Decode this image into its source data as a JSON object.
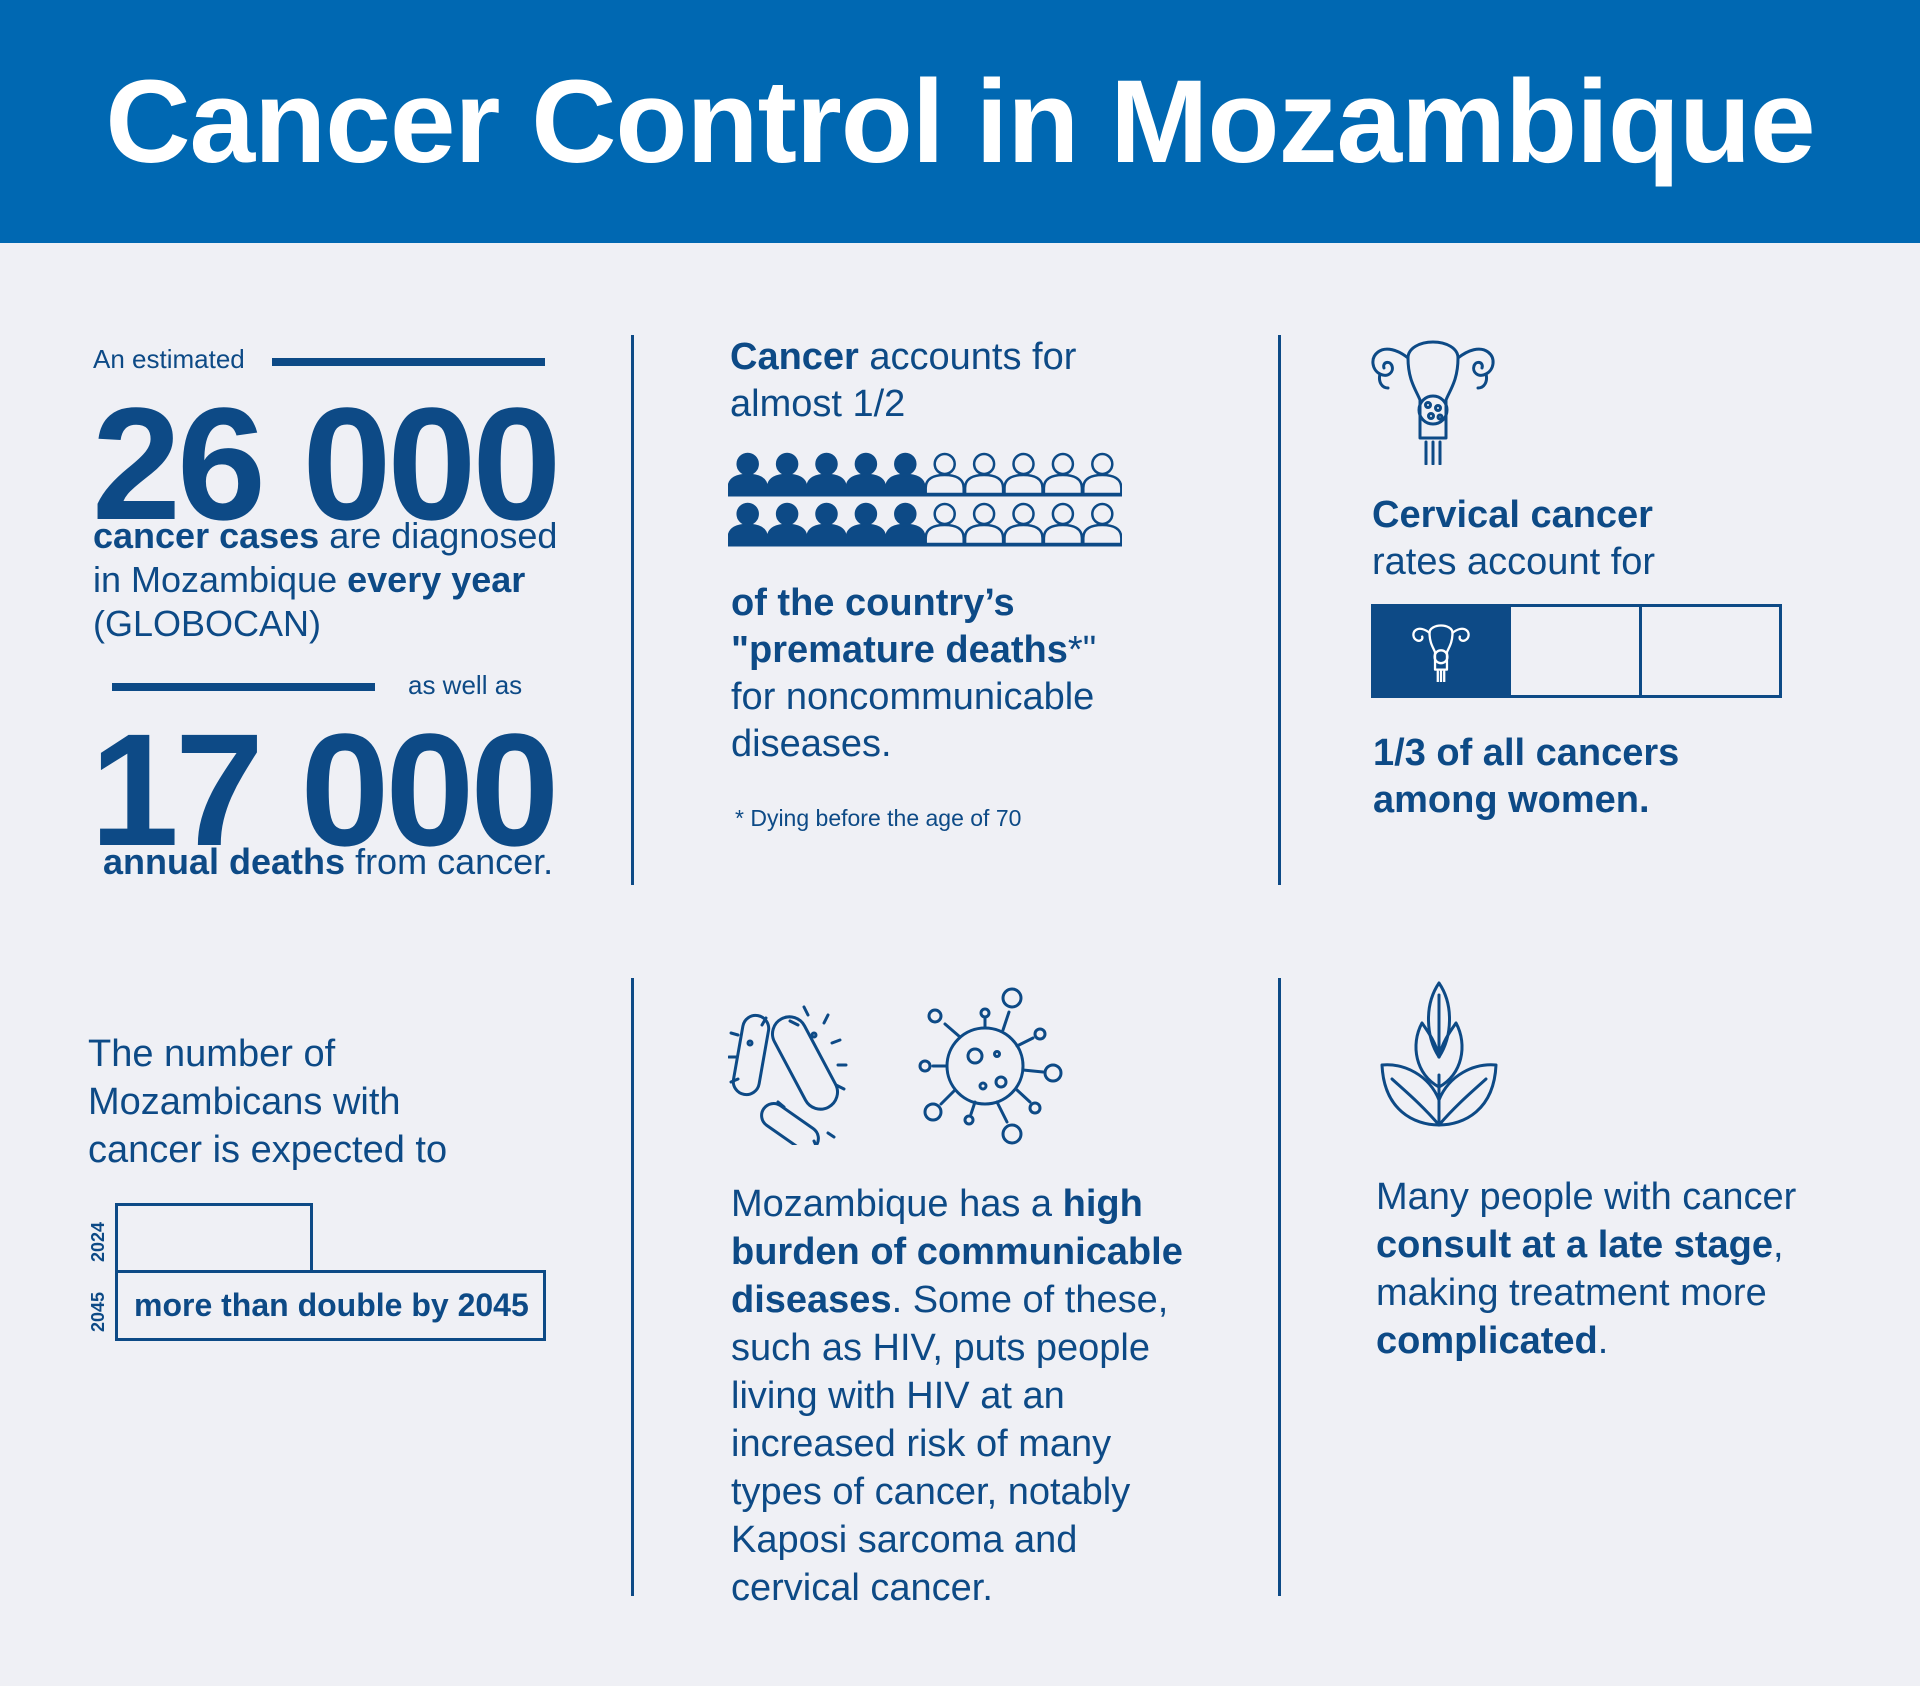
{
  "header": {
    "title": "Cancer Control in Mozambique"
  },
  "panel_cases": {
    "intro": "An estimated",
    "cases_number": "26 000",
    "cases_bold": "cancer cases",
    "cases_mid": " are diagnosed in Mozambique ",
    "cases_bold2": "every year",
    "cases_source": "(GLOBOCAN)",
    "as_well_as": "as well as",
    "deaths_number": "17 000",
    "deaths_bold": "annual deaths",
    "deaths_rest": " from cancer."
  },
  "panel_premature": {
    "line1_bold": "Cancer",
    "line1_rest": " accounts for",
    "line2": "almost 1/2",
    "people_filled_per_row": 5,
    "people_total_per_row": 10,
    "rows": 2,
    "bold_line1": "of the country’s",
    "bold_line2": "\"premature deaths",
    "asterisk_quote": "*\"",
    "rest_line1": "for noncommunicable",
    "rest_line2": "diseases.",
    "footnote": "* Dying before the age of 70"
  },
  "panel_cervical": {
    "bold_title": "Cervical cancer",
    "subtitle": "rates account for",
    "fraction_filled": 1,
    "fraction_total": 3,
    "result_line1": "1/3 of all cancers",
    "result_line2": "among women.",
    "icon": "uterus-icon"
  },
  "panel_growth": {
    "line1": "The number of",
    "line2": "Mozambicans with",
    "line3": "cancer is expected to",
    "year_a": "2024",
    "year_b": "2045",
    "growth_label": "more than double by 2045",
    "ratio": 2.2
  },
  "panel_communicable": {
    "intro": "Mozambique has a ",
    "bold1": "high",
    "bold2": "burden of communicable",
    "bold3": "diseases",
    "rest1": ". Some of these,",
    "line4": "such as HIV, puts people",
    "line5": "living with HIV at an",
    "line6": "increased risk of many",
    "line7": "types of cancer, notably",
    "line8": "Kaposi sarcoma and",
    "line9": "cervical cancer.",
    "icons": [
      "bacteria-icon",
      "virus-icon"
    ]
  },
  "panel_late": {
    "line1": "Many people with cancer",
    "bold1": "consult at a late stage",
    "comma": ",",
    "line3": "making treatment more",
    "bold2": "complicated",
    "period": ".",
    "icon": "leaf-icon"
  },
  "colors": {
    "header_bg": "#0068b2",
    "text": "#0d4a86",
    "bg": "#eff0f5"
  }
}
